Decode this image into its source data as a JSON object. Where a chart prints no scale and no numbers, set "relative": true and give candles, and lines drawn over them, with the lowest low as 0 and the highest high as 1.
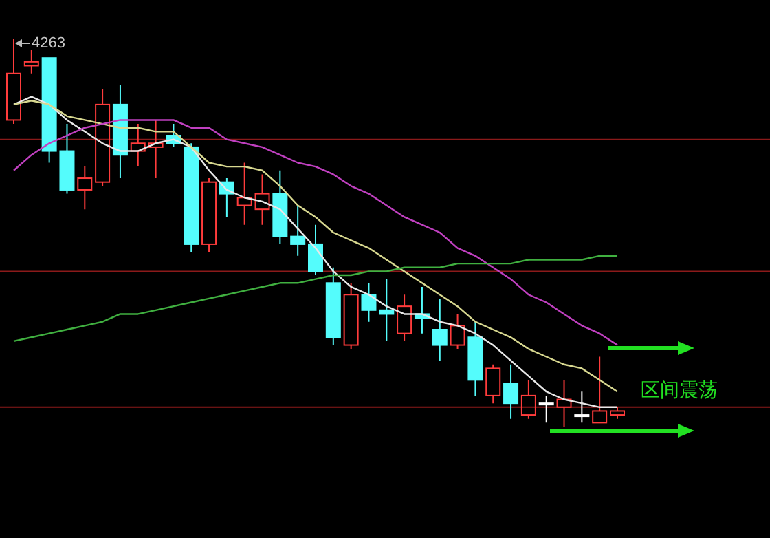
{
  "chart_data": {
    "type": "candlestick",
    "relative": true,
    "categories": [
      null,
      null,
      null,
      null,
      null,
      null,
      null,
      null,
      null,
      null,
      null,
      null,
      null,
      null,
      null,
      null,
      null,
      null,
      null,
      null,
      null,
      null,
      null,
      null,
      null,
      null,
      null,
      null,
      null,
      null,
      null,
      null,
      null,
      null,
      null
    ],
    "ohlc": [
      [
        0.79,
        1,
        0.78,
        0.91
      ],
      [
        0.93,
        0.97,
        0.91,
        0.94
      ],
      [
        0.95,
        0.95,
        0.68,
        0.71
      ],
      [
        0.71,
        0.78,
        0.6,
        0.61
      ],
      [
        0.61,
        0.67,
        0.56,
        0.64
      ],
      [
        0.63,
        0.87,
        0.62,
        0.83
      ],
      [
        0.83,
        0.88,
        0.64,
        0.7
      ],
      [
        0.71,
        0.78,
        0.67,
        0.73
      ],
      [
        0.72,
        0.79,
        0.64,
        0.73
      ],
      [
        0.75,
        0.78,
        0.72,
        0.73
      ],
      [
        0.72,
        0.73,
        0.45,
        0.47
      ],
      [
        0.47,
        0.64,
        0.45,
        0.63
      ],
      [
        0.63,
        0.64,
        0.54,
        0.6
      ],
      [
        0.57,
        0.68,
        0.52,
        0.59
      ],
      [
        0.56,
        0.65,
        0.52,
        0.6
      ],
      [
        0.6,
        0.66,
        0.47,
        0.49
      ],
      [
        0.49,
        0.57,
        0.44,
        0.47
      ],
      [
        0.47,
        0.52,
        0.39,
        0.4
      ],
      [
        0.37,
        0.41,
        0.21,
        0.23
      ],
      [
        0.21,
        0.37,
        0.2,
        0.34
      ],
      [
        0.34,
        0.37,
        0.27,
        0.3
      ],
      [
        0.3,
        0.38,
        0.22,
        0.29
      ],
      [
        0.24,
        0.34,
        0.22,
        0.31
      ],
      [
        0.29,
        0.36,
        0.24,
        0.28
      ],
      [
        0.25,
        0.33,
        0.17,
        0.21
      ],
      [
        0.21,
        0.29,
        0.2,
        0.26
      ],
      [
        0.23,
        0.27,
        0.08,
        0.12
      ],
      [
        0.08,
        0.16,
        0.06,
        0.15
      ],
      [
        0.11,
        0.16,
        0.02,
        0.06
      ],
      [
        0.03,
        0.12,
        0.02,
        0.08
      ],
      [
        0.06,
        0.08,
        0.01,
        0.06
      ],
      [
        0.05,
        0.12,
        0,
        0.07
      ],
      [
        0.03,
        0.09,
        0.01,
        0.03
      ],
      [
        0.01,
        0.18,
        0.01,
        0.04
      ],
      [
        0.03,
        0.05,
        0.02,
        0.04
      ]
    ],
    "colors": [
      "#ff3c3c",
      "#ff3c3c",
      "#54fcfc",
      "#54fcfc",
      "#ff3c3c",
      "#ff3c3c",
      "#54fcfc",
      "#ff3c3c",
      "#ff3c3c",
      "#54fcfc",
      "#54fcfc",
      "#ff3c3c",
      "#54fcfc",
      "#ff3c3c",
      "#ff3c3c",
      "#54fcfc",
      "#54fcfc",
      "#54fcfc",
      "#54fcfc",
      "#ff3c3c",
      "#54fcfc",
      "#54fcfc",
      "#ff3c3c",
      "#54fcfc",
      "#54fcfc",
      "#ff3c3c",
      "#54fcfc",
      "#ff3c3c",
      "#54fcfc",
      "#ff3c3c",
      "#ffffff",
      "#ff3c3c",
      "#ffffff",
      "#ff3c3c",
      "#ff3c3c"
    ],
    "series": [
      {
        "type": "line",
        "color": "#e8e8e8",
        "values": [
          0.83,
          0.85,
          0.83,
          0.79,
          0.76,
          0.73,
          0.71,
          0.71,
          0.73,
          0.74,
          0.72,
          0.66,
          0.61,
          0.59,
          0.58,
          0.56,
          0.51,
          0.46,
          0.4,
          0.36,
          0.34,
          0.31,
          0.29,
          0.29,
          0.27,
          0.26,
          0.24,
          0.21,
          0.17,
          0.13,
          0.09,
          0.07,
          0.06,
          0.05,
          0.05
        ]
      },
      {
        "type": "line",
        "color": "#d8d890",
        "values": [
          0.83,
          0.84,
          0.83,
          0.8,
          0.79,
          0.78,
          0.77,
          0.77,
          0.76,
          0.76,
          0.72,
          0.68,
          0.67,
          0.67,
          0.66,
          0.62,
          0.57,
          0.54,
          0.5,
          0.48,
          0.46,
          0.43,
          0.4,
          0.37,
          0.34,
          0.31,
          0.27,
          0.25,
          0.23,
          0.2,
          0.18,
          0.16,
          0.15,
          0.12,
          0.09
        ]
      },
      {
        "type": "line",
        "color": "#c040c0",
        "values": [
          0.66,
          0.7,
          0.73,
          0.75,
          0.77,
          0.78,
          0.79,
          0.79,
          0.79,
          0.79,
          0.77,
          0.77,
          0.74,
          0.73,
          0.72,
          0.7,
          0.68,
          0.67,
          0.65,
          0.62,
          0.6,
          0.57,
          0.54,
          0.52,
          0.5,
          0.46,
          0.44,
          0.41,
          0.38,
          0.34,
          0.32,
          0.29,
          0.26,
          0.24,
          0.21
        ]
      },
      {
        "type": "line",
        "color": "#40b040",
        "values": [
          0.22,
          0.23,
          0.24,
          0.25,
          0.26,
          0.27,
          0.29,
          0.29,
          0.3,
          0.31,
          0.32,
          0.33,
          0.34,
          0.35,
          0.36,
          0.37,
          0.37,
          0.38,
          0.39,
          0.39,
          0.4,
          0.4,
          0.41,
          0.41,
          0.41,
          0.42,
          0.42,
          0.42,
          0.42,
          0.43,
          0.43,
          0.43,
          0.43,
          0.44,
          0.44
        ]
      }
    ],
    "ref_lines": [
      {
        "axis": "y",
        "value": 0.74,
        "color": "#8b1a1a"
      },
      {
        "axis": "y",
        "value": 0.4,
        "color": "#8b1a1a"
      },
      {
        "axis": "y",
        "value": 0.05,
        "color": "#8b1a1a"
      }
    ],
    "annotations": [
      "4263",
      "区间震荡"
    ]
  }
}
